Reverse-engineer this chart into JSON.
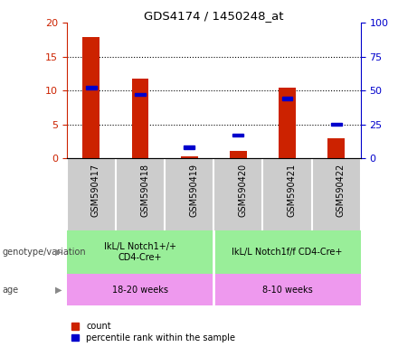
{
  "title": "GDS4174 / 1450248_at",
  "samples": [
    "GSM590417",
    "GSM590418",
    "GSM590419",
    "GSM590420",
    "GSM590421",
    "GSM590422"
  ],
  "count_values": [
    17.8,
    11.8,
    0.3,
    1.1,
    10.4,
    3.0
  ],
  "percentile_values": [
    52,
    47,
    8,
    17,
    44,
    25
  ],
  "bar_color": "#cc2200",
  "dot_color": "#0000cc",
  "ylim_left": [
    0,
    20
  ],
  "ylim_right": [
    0,
    100
  ],
  "yticks_left": [
    0,
    5,
    10,
    15,
    20
  ],
  "yticks_right": [
    0,
    25,
    50,
    75,
    100
  ],
  "genotype_groups": [
    {
      "label": "IkL/L Notch1+/+\nCD4-Cre+",
      "start": 0,
      "end": 3,
      "color": "#99ee99"
    },
    {
      "label": "IkL/L Notch1f/f CD4-Cre+",
      "start": 3,
      "end": 6,
      "color": "#99ee99"
    }
  ],
  "age_groups": [
    {
      "label": "18-20 weeks",
      "start": 0,
      "end": 3,
      "color": "#ee99ee"
    },
    {
      "label": "8-10 weeks",
      "start": 3,
      "end": 6,
      "color": "#ee99ee"
    }
  ],
  "genotype_label": "genotype/variation",
  "age_label": "age",
  "legend_count": "count",
  "legend_percentile": "percentile rank within the sample",
  "sample_bg_color": "#cccccc",
  "left_tick_color": "#cc2200",
  "right_tick_color": "#0000cc"
}
